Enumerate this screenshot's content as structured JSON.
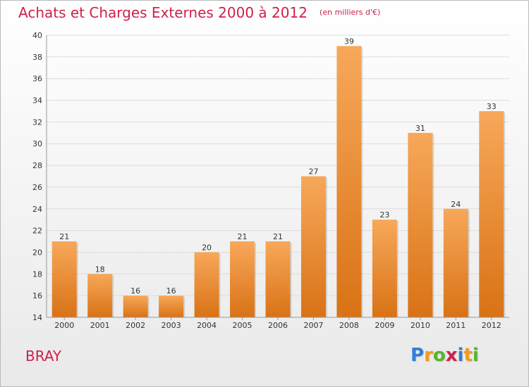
{
  "title": "Achats et Charges Externes 2000 à 2012",
  "subtitle": "(en milliers d'€)",
  "commune": "BRAY",
  "logo": {
    "letters": [
      "P",
      "r",
      "o",
      "x",
      "i",
      "t",
      "i"
    ],
    "colors": [
      "#2f7fd6",
      "#f39a1b",
      "#57b52f",
      "#d0204c",
      "#2f7fd6",
      "#f39a1b",
      "#57b52f"
    ]
  },
  "colors": {
    "bar_light": "#f7a85a",
    "bar_dark": "#d97215",
    "accent": "#d0204c"
  },
  "chart_data": {
    "type": "bar",
    "categories": [
      "2000",
      "2001",
      "2002",
      "2003",
      "2004",
      "2005",
      "2006",
      "2007",
      "2008",
      "2009",
      "2010",
      "2011",
      "2012"
    ],
    "values": [
      21,
      18,
      16,
      16,
      20,
      21,
      21,
      27,
      39,
      23,
      31,
      24,
      33
    ],
    "data_labels": [
      "21",
      "18",
      "16",
      "16",
      "20",
      "21",
      "21",
      "27",
      "39",
      "23",
      "31",
      "24",
      "33"
    ],
    "yticks": [
      14,
      16,
      18,
      20,
      22,
      24,
      26,
      28,
      30,
      32,
      34,
      36,
      38,
      40
    ],
    "ytick_labels": [
      "14",
      "16",
      "18",
      "20",
      "22",
      "24",
      "26",
      "28",
      "30",
      "32",
      "34",
      "36",
      "38",
      "40"
    ],
    "ylim": [
      14,
      40
    ],
    "grid": true,
    "legend": "none"
  }
}
